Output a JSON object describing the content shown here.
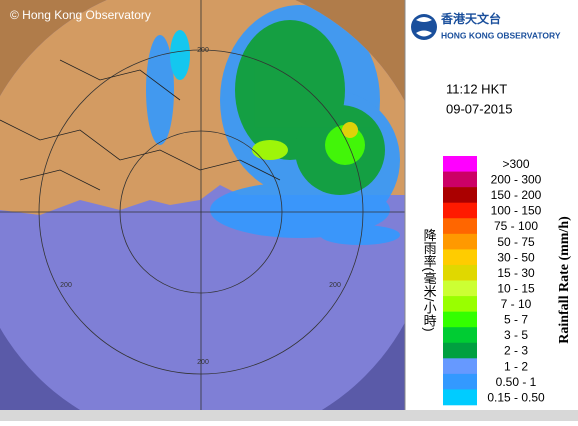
{
  "copyright": "© Hong Kong Observatory",
  "logo": {
    "chinese": "香港天文台",
    "english": "HONG KONG OBSERVATORY"
  },
  "time": "11:12 HKT",
  "date": "09-07-2015",
  "range_labels": [
    "200",
    "200",
    "200",
    "200"
  ],
  "legend": {
    "title_chinese": "降雨率(毫米/小時)",
    "title_english": "Rainfall Rate (mm/h)",
    "items": [
      {
        "label": ">300",
        "color": "#ff00ff"
      },
      {
        "label": "200 - 300",
        "color": "#cc0066"
      },
      {
        "label": "150 - 200",
        "color": "#aa0000"
      },
      {
        "label": "100 - 150",
        "color": "#ff1a00"
      },
      {
        "label": "75 - 100",
        "color": "#ff6600"
      },
      {
        "label": "50 - 75",
        "color": "#ff9900"
      },
      {
        "label": "30 - 50",
        "color": "#ffcc00"
      },
      {
        "label": "15 - 30",
        "color": "#e0d800"
      },
      {
        "label": "10 - 15",
        "color": "#ccff33"
      },
      {
        "label": "7 - 10",
        "color": "#99ff00"
      },
      {
        "label": "5 - 7",
        "color": "#33ff00"
      },
      {
        "label": "3 - 5",
        "color": "#00cc33"
      },
      {
        "label": "2 - 3",
        "color": "#00a040"
      },
      {
        "label": "1 - 2",
        "color": "#6699ff"
      },
      {
        "label": "0.50 - 1",
        "color": "#3399ff"
      },
      {
        "label": "0.15 - 0.50",
        "color": "#00ccff"
      }
    ]
  }
}
